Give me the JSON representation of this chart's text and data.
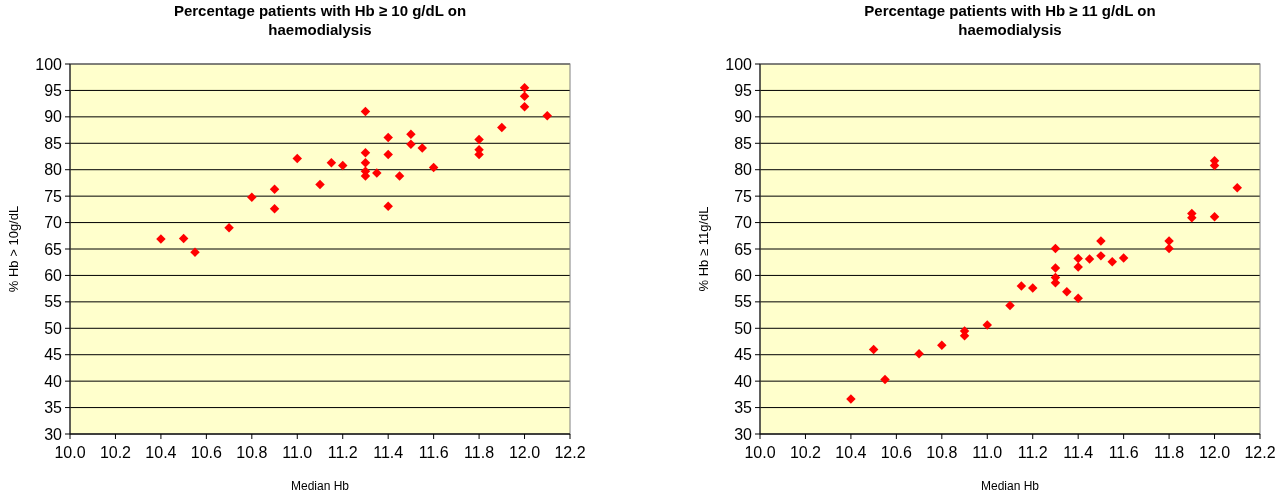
{
  "chart_data": [
    {
      "type": "scatter",
      "title": "Percentage patients with Hb ≥ 10 g/dL on haemodialysis",
      "xlabel": "Median Hb",
      "ylabel": "% Hb > 10g/dL",
      "marker": "diamond",
      "grid": "y",
      "xlim": [
        10.0,
        12.2
      ],
      "xticks": [
        {
          "value": 10.0,
          "label": "10.0"
        },
        {
          "value": 10.2,
          "label": "10.2"
        },
        {
          "value": 10.4,
          "label": "10.4"
        },
        {
          "value": 10.6,
          "label": "10.6"
        },
        {
          "value": 10.8,
          "label": "10.8"
        },
        {
          "value": 11.0,
          "label": "11.0"
        },
        {
          "value": 11.2,
          "label": "11.2"
        },
        {
          "value": 11.4,
          "label": "11.4"
        },
        {
          "value": 11.6,
          "label": "11.6"
        },
        {
          "value": 11.8,
          "label": "11.8"
        },
        {
          "value": 12.0,
          "label": "12.0"
        },
        {
          "value": 12.2,
          "label": "12.2"
        }
      ],
      "ylim": [
        30,
        100
      ],
      "yticks": [
        30,
        35,
        40,
        45,
        50,
        55,
        60,
        65,
        70,
        75,
        80,
        85,
        90,
        95,
        100
      ],
      "series": [
        {
          "color": "#ff0000",
          "x": [
            10.4,
            10.5,
            10.55,
            10.7,
            10.8,
            10.9,
            10.9,
            11.0,
            11.1,
            11.15,
            11.2,
            11.3,
            11.3,
            11.3,
            11.3,
            11.3,
            11.35,
            11.4,
            11.4,
            11.4,
            11.45,
            11.5,
            11.5,
            11.55,
            11.6,
            11.8,
            11.8,
            11.8,
            11.9,
            12.0,
            12.0,
            12.0,
            12.1
          ],
          "values": [
            66.9,
            67.0,
            64.4,
            69.0,
            74.8,
            76.3,
            72.6,
            82.1,
            77.2,
            81.3,
            80.8,
            91.0,
            83.2,
            81.3,
            79.7,
            78.8,
            79.4,
            86.1,
            82.9,
            73.1,
            78.8,
            86.7,
            84.8,
            84.1,
            80.4,
            85.7,
            83.8,
            82.9,
            88.0,
            95.5,
            93.9,
            91.9,
            90.2
          ]
        }
      ]
    },
    {
      "type": "scatter",
      "title": "Percentage patients with Hb ≥ 11 g/dL on haemodialysis",
      "xlabel": "Median Hb",
      "ylabel": "% Hb ≥ 11g/dL",
      "marker": "diamond",
      "grid": "y",
      "xlim": [
        10.0,
        12.2
      ],
      "xticks": [
        {
          "value": 10.0,
          "label": "10.0"
        },
        {
          "value": 10.2,
          "label": "10.2"
        },
        {
          "value": 10.4,
          "label": "10.4"
        },
        {
          "value": 10.6,
          "label": "10.6"
        },
        {
          "value": 10.8,
          "label": "10.8"
        },
        {
          "value": 11.0,
          "label": "11.0"
        },
        {
          "value": 11.2,
          "label": "11.2"
        },
        {
          "value": 11.4,
          "label": "11.4"
        },
        {
          "value": 11.6,
          "label": "11.6"
        },
        {
          "value": 11.8,
          "label": "11.8"
        },
        {
          "value": 12.0,
          "label": "12.0"
        },
        {
          "value": 12.2,
          "label": "12.2"
        }
      ],
      "ylim": [
        30,
        100
      ],
      "yticks": [
        30,
        35,
        40,
        45,
        50,
        55,
        60,
        65,
        70,
        75,
        80,
        85,
        90,
        95,
        100
      ],
      "series": [
        {
          "color": "#ff0000",
          "x": [
            10.4,
            10.5,
            10.55,
            10.7,
            10.8,
            10.9,
            10.9,
            11.0,
            11.1,
            11.15,
            11.2,
            11.3,
            11.3,
            11.3,
            11.3,
            11.35,
            11.4,
            11.4,
            11.4,
            11.45,
            11.5,
            11.5,
            11.55,
            11.6,
            11.8,
            11.8,
            11.9,
            11.9,
            12.0,
            12.0,
            12.0,
            12.1
          ],
          "values": [
            36.6,
            46.0,
            40.3,
            45.2,
            46.8,
            49.5,
            48.6,
            50.6,
            54.3,
            58.0,
            57.6,
            65.1,
            61.4,
            59.6,
            58.6,
            56.9,
            63.2,
            61.6,
            55.7,
            63.1,
            66.5,
            63.7,
            62.6,
            63.3,
            66.5,
            65.1,
            71.7,
            70.9,
            81.7,
            80.8,
            71.1,
            76.6
          ]
        }
      ]
    }
  ]
}
